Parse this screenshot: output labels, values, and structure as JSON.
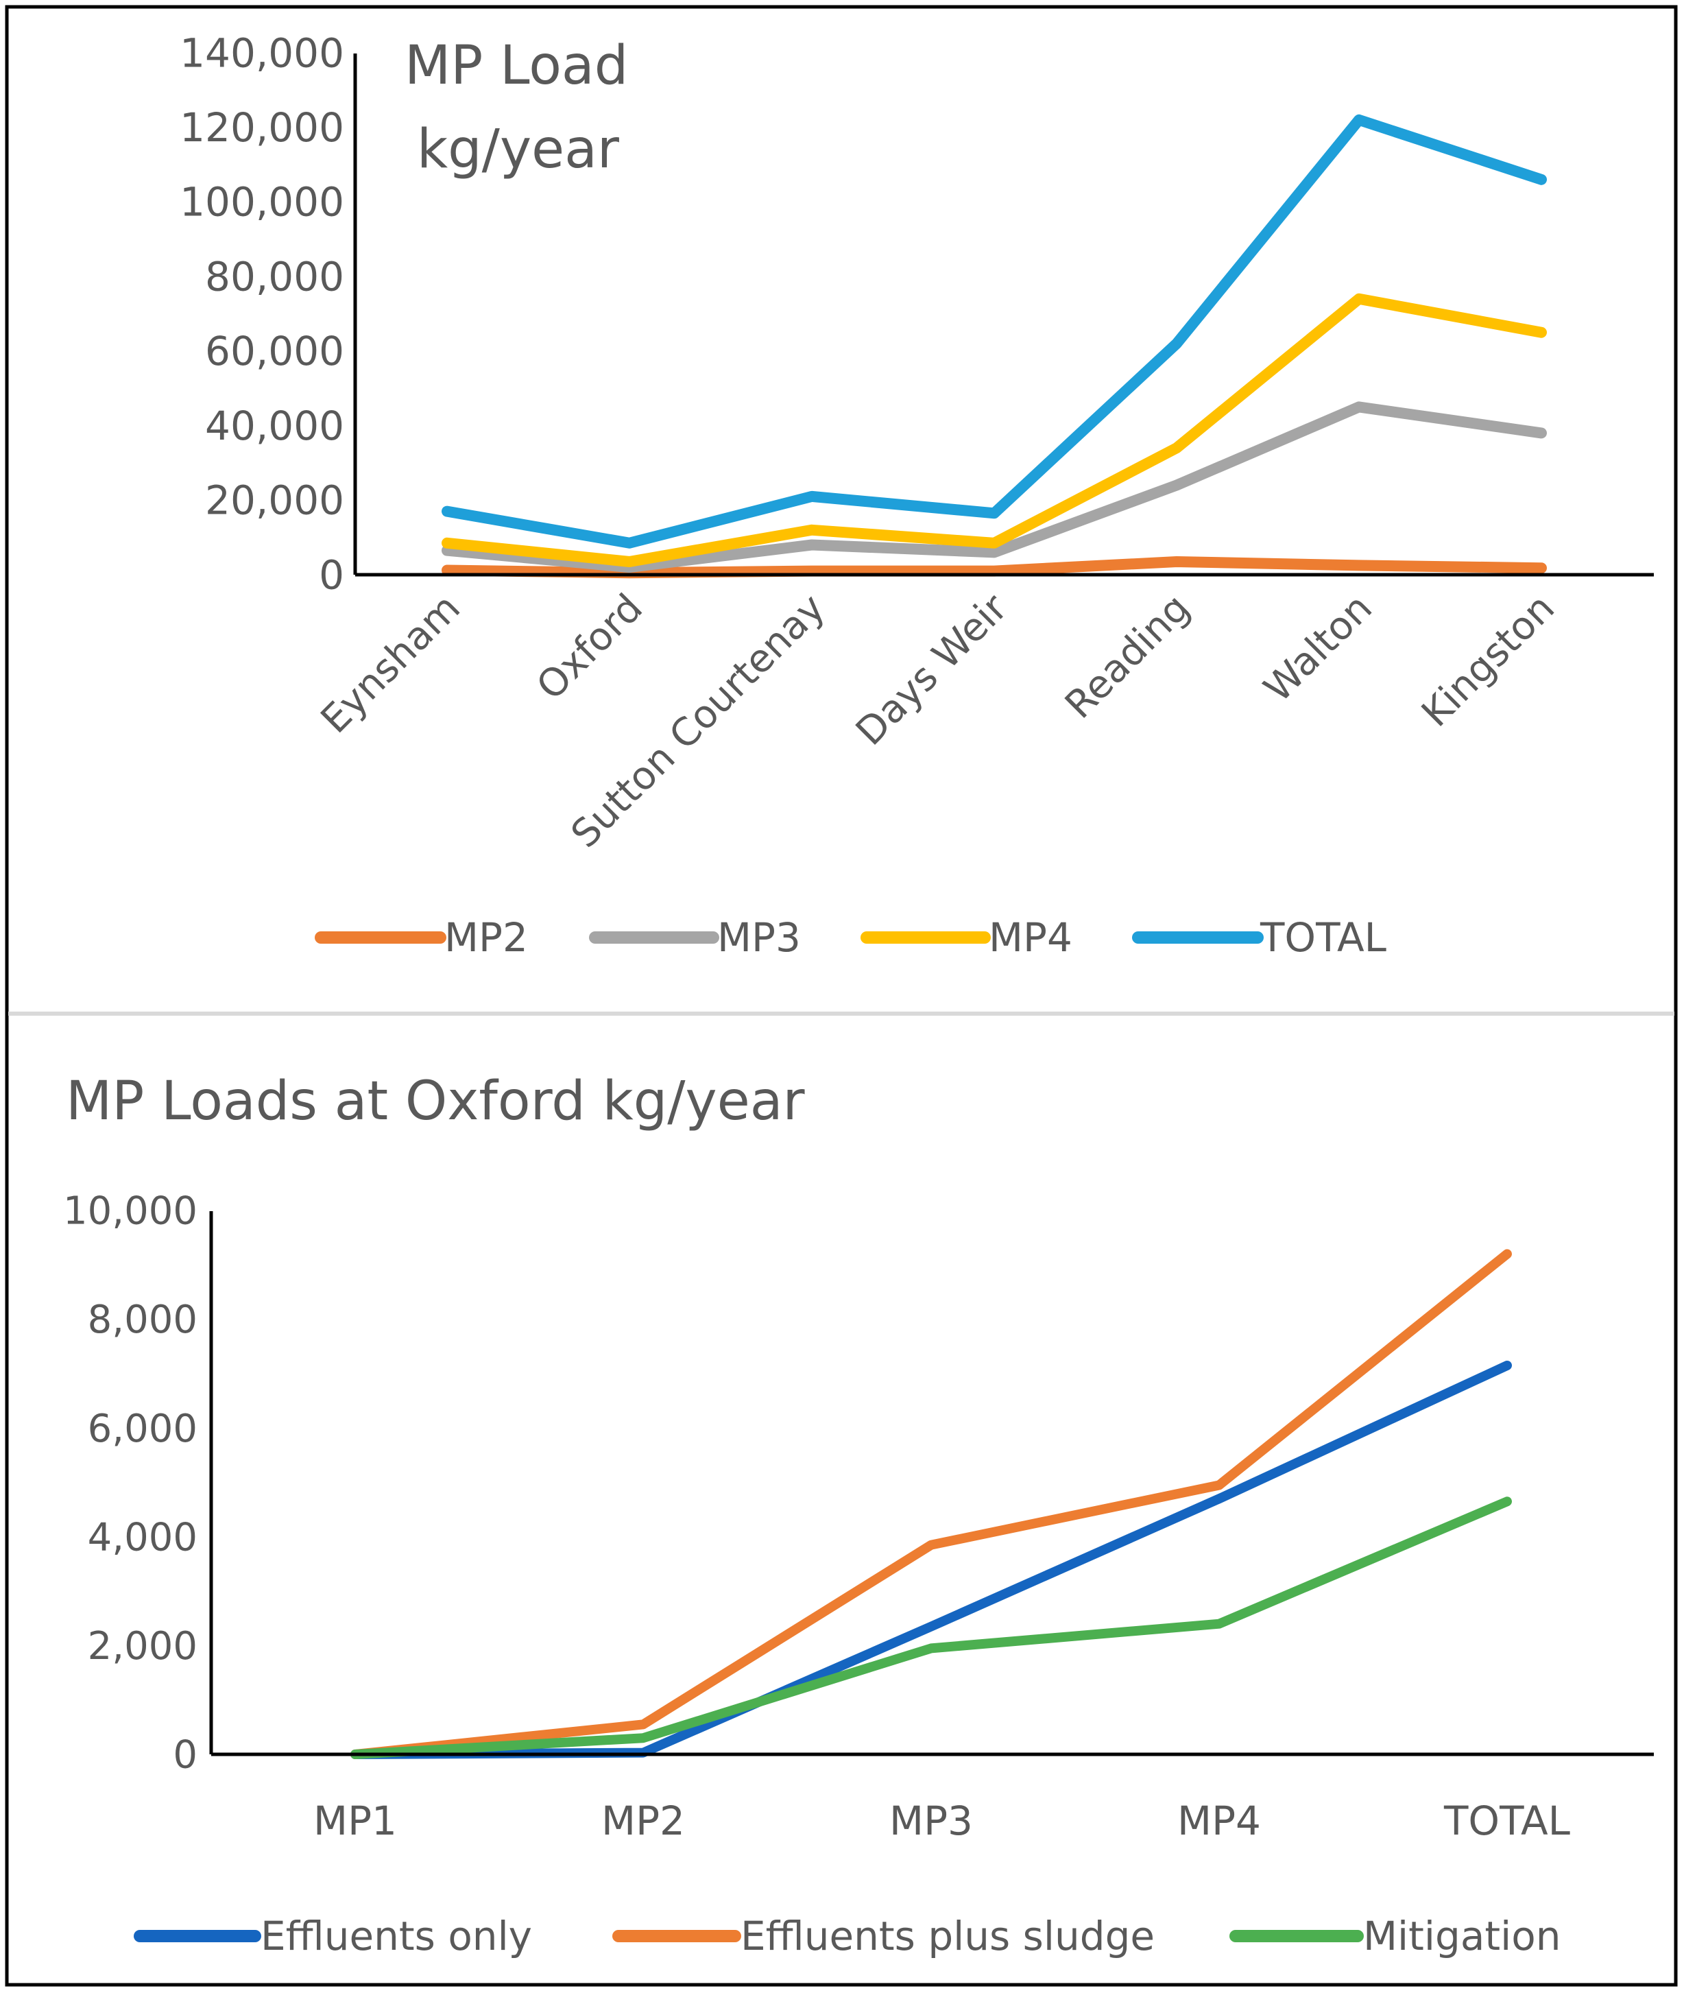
{
  "chart_data": [
    {
      "type": "line",
      "title": "MP Load kg/year",
      "title_lines": [
        "MP Load",
        "kg/year"
      ],
      "xlabel": "",
      "ylabel": "",
      "ylim": [
        0,
        140000
      ],
      "yticks": [
        0,
        20000,
        40000,
        60000,
        80000,
        100000,
        120000,
        140000
      ],
      "ytick_labels": [
        "0",
        "20,000",
        "40,000",
        "60,000",
        "80,000",
        "100,000",
        "120,000",
        "140,000"
      ],
      "grid": false,
      "categories": [
        "Eynsham",
        "Oxford",
        "Sutton Courtenay",
        "Days Weir",
        "Reading",
        "Walton",
        "Kingston"
      ],
      "legend_position": "bottom",
      "series": [
        {
          "name": "MP2",
          "color": "#ED7D31",
          "values": [
            1200,
            500,
            1000,
            1000,
            3500,
            2500,
            1800
          ]
        },
        {
          "name": "MP3",
          "color": "#A5A5A5",
          "values": [
            6500,
            2000,
            8000,
            6000,
            24000,
            45000,
            38000
          ]
        },
        {
          "name": "MP4",
          "color": "#FFC000",
          "values": [
            8500,
            3500,
            12000,
            8500,
            34000,
            74000,
            65000
          ]
        },
        {
          "name": "TOTAL",
          "color": "#1F9FD9",
          "values": [
            17000,
            8500,
            21000,
            16500,
            62000,
            122000,
            106000
          ]
        }
      ]
    },
    {
      "type": "line",
      "title": "MP Loads at Oxford kg/year",
      "xlabel": "",
      "ylabel": "",
      "ylim": [
        0,
        10000
      ],
      "yticks": [
        0,
        2000,
        4000,
        6000,
        8000,
        10000
      ],
      "ytick_labels": [
        "0",
        "2,000",
        "4,000",
        "6,000",
        "8,000",
        "10,000"
      ],
      "grid": false,
      "categories": [
        "MP1",
        "MP2",
        "MP3",
        "MP4",
        "TOTAL"
      ],
      "legend_position": "bottom",
      "series": [
        {
          "name": "Effluents only",
          "color": "#1565C0",
          "values": [
            0,
            30,
            2350,
            4700,
            7150
          ]
        },
        {
          "name": "Effluents plus sludge",
          "color": "#ED7D31",
          "values": [
            0,
            550,
            3850,
            4950,
            9200
          ]
        },
        {
          "name": "Mitigation",
          "color": "#4CAF50",
          "values": [
            0,
            300,
            1950,
            2400,
            4650
          ]
        }
      ]
    }
  ]
}
